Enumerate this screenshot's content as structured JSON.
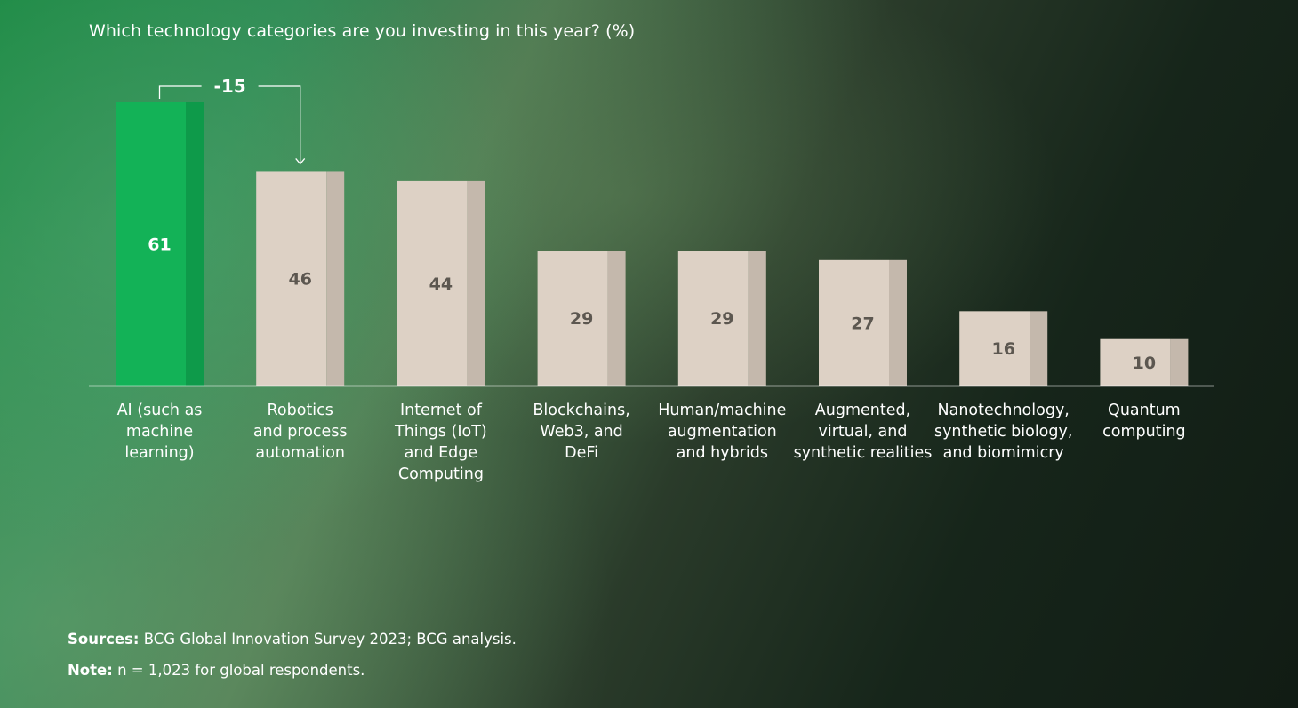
{
  "chart_data": {
    "type": "bar",
    "title": "Which technology categories are you investing in this year? (%)",
    "categories": [
      [
        "AI (such as",
        "machine",
        "learning)"
      ],
      [
        "Robotics",
        "and process",
        "automation"
      ],
      [
        "Internet of",
        "Things (IoT)",
        "and Edge",
        "Computing"
      ],
      [
        "Blockchains,",
        "Web3, and",
        "DeFi"
      ],
      [
        "Human/machine",
        "augmentation",
        "and hybrids"
      ],
      [
        "Augmented,",
        "virtual, and",
        "synthetic realities"
      ],
      [
        "Nanotechnology,",
        "synthetic biology,",
        "and biomimicry"
      ],
      [
        "Quantum",
        "computing"
      ]
    ],
    "values": [
      61,
      46,
      44,
      29,
      29,
      27,
      16,
      10
    ],
    "highlight_index": 0,
    "annotation": {
      "label": "-15",
      "from_index": 0,
      "to_index": 1
    },
    "ylim": [
      0,
      61
    ],
    "xlabel": "",
    "ylabel": "",
    "colors": {
      "highlight_front": "#13b257",
      "highlight_side": "#0e9a4a",
      "bar_front": "#ddd1c5",
      "bar_side": "#c4b8ac",
      "highlight_value": "#ffffff",
      "bar_value": "#5c5750",
      "axis": "#ffffff",
      "label": "#ffffff"
    }
  },
  "footnotes": {
    "sources_label": "Sources:",
    "sources_text": "BCG Global Innovation Survey 2023; BCG analysis.",
    "note_label": "Note:",
    "note_text": "n = 1,023 for global respondents."
  }
}
